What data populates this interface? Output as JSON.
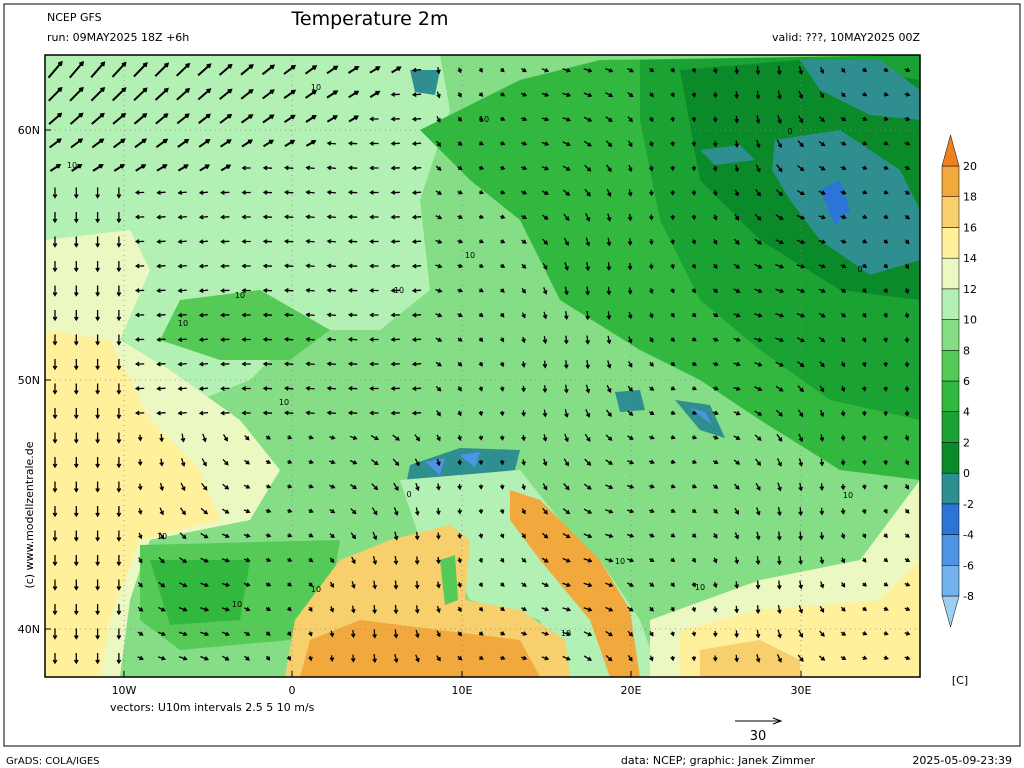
{
  "header": {
    "model": "NCEP GFS",
    "run": "run: 09MAY2025 18Z +6h",
    "title": "Temperature 2m",
    "valid": "valid: ???, 10MAY2025 00Z"
  },
  "axes": {
    "lat_labels": [
      "60N",
      "50N",
      "40N"
    ],
    "lon_labels": [
      "10W",
      "0",
      "10E",
      "20E",
      "30E"
    ]
  },
  "colorbar": {
    "levels": [
      -8,
      -6,
      -4,
      -2,
      0,
      2,
      4,
      6,
      8,
      10,
      12,
      14,
      16,
      18,
      20
    ],
    "colors": [
      "#9ccff2",
      "#74b2ee",
      "#4e93e4",
      "#2c74d6",
      "#2f8f90",
      "#0b8a2a",
      "#1aa232",
      "#33b83f",
      "#55ca56",
      "#85dd85",
      "#b3f0b3",
      "#ebf8c2",
      "#fff09c",
      "#f7cf6c",
      "#f1a93e",
      "#ef8022"
    ],
    "unit": "[C]"
  },
  "contour_labels": [
    "10",
    "10",
    "10",
    "10",
    "10",
    "0",
    "0",
    "10",
    "10",
    "0",
    "10",
    "10",
    "10",
    "10",
    "10",
    "10",
    "10",
    "10"
  ],
  "vectors": {
    "caption": "vectors: U10m intervals 2.5 5 10 m/s",
    "reference": "30"
  },
  "credit": "(c) www.modellzentrale.de",
  "footer": {
    "software": "GrADS: COLA/IGES",
    "source": "data: NCEP; graphic: Janek Zimmer",
    "timestamp": "2025-05-09-23:39"
  }
}
